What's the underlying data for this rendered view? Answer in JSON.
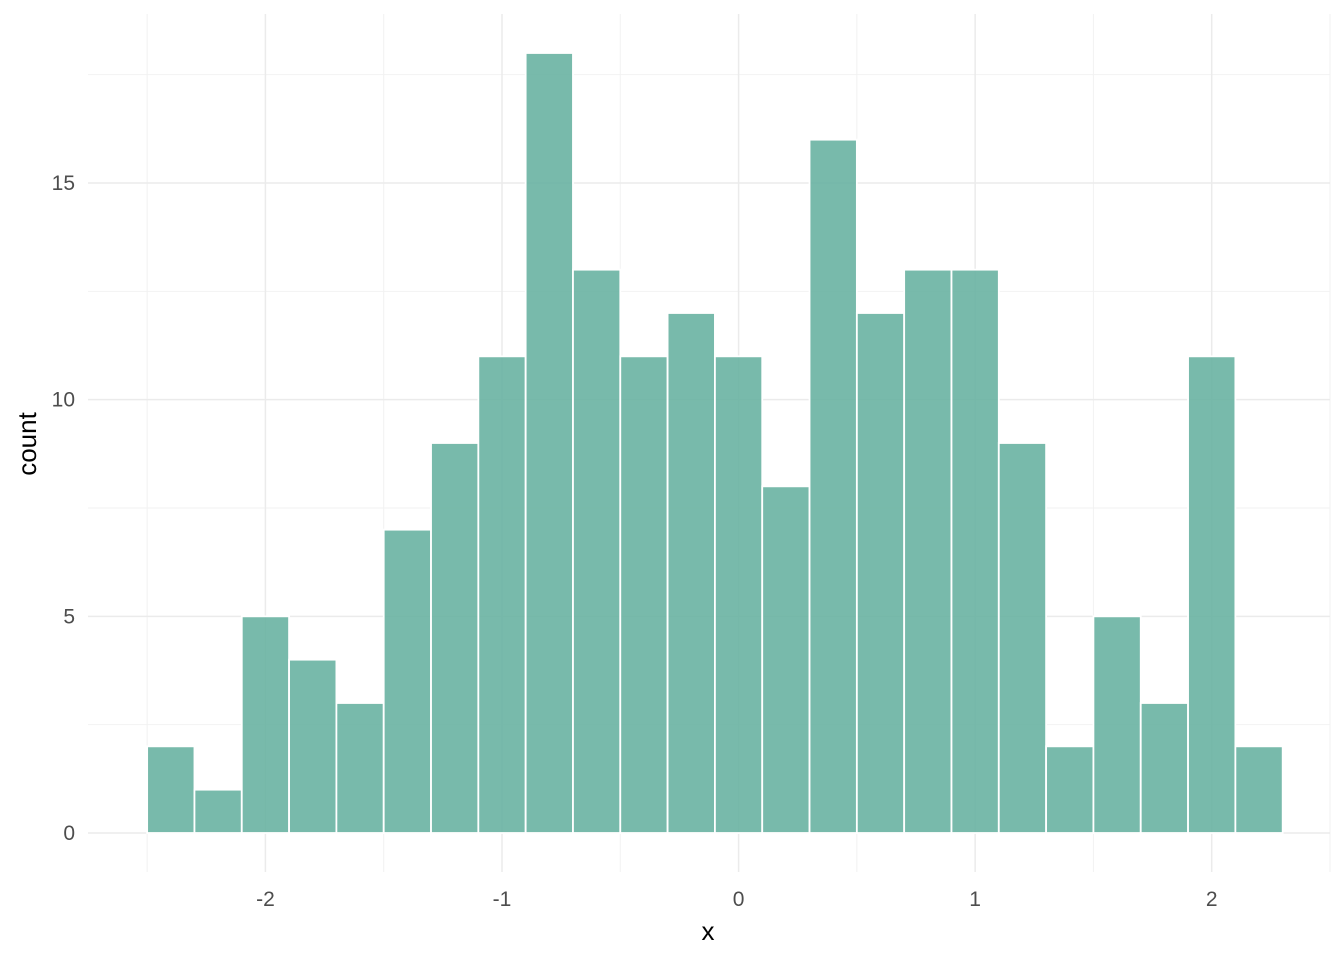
{
  "chart_data": {
    "type": "bar",
    "subtype": "histogram",
    "xlabel": "x",
    "ylabel": "count",
    "xlim": [
      -2.75,
      2.5
    ],
    "ylim": [
      -0.9,
      18.9
    ],
    "x_ticks": [
      -2,
      -1,
      0,
      1,
      2
    ],
    "y_ticks": [
      0,
      5,
      10,
      15
    ],
    "x_minor_ticks": [
      -2.5,
      -1.5,
      -0.5,
      0.5,
      1.5,
      2.5
    ],
    "y_minor_ticks": [
      2.5,
      7.5,
      12.5,
      17.5
    ],
    "bins": [
      {
        "x_start": -2.5,
        "x_end": -2.3,
        "count": 2
      },
      {
        "x_start": -2.3,
        "x_end": -2.1,
        "count": 1
      },
      {
        "x_start": -2.1,
        "x_end": -1.9,
        "count": 5
      },
      {
        "x_start": -1.9,
        "x_end": -1.7,
        "count": 4
      },
      {
        "x_start": -1.7,
        "x_end": -1.5,
        "count": 3
      },
      {
        "x_start": -1.5,
        "x_end": -1.3,
        "count": 7
      },
      {
        "x_start": -1.3,
        "x_end": -1.1,
        "count": 9
      },
      {
        "x_start": -1.1,
        "x_end": -0.9,
        "count": 11
      },
      {
        "x_start": -0.9,
        "x_end": -0.7,
        "count": 18
      },
      {
        "x_start": -0.7,
        "x_end": -0.5,
        "count": 13
      },
      {
        "x_start": -0.5,
        "x_end": -0.3,
        "count": 11
      },
      {
        "x_start": -0.3,
        "x_end": -0.1,
        "count": 12
      },
      {
        "x_start": -0.1,
        "x_end": 0.1,
        "count": 11
      },
      {
        "x_start": 0.1,
        "x_end": 0.3,
        "count": 8
      },
      {
        "x_start": 0.3,
        "x_end": 0.5,
        "count": 16
      },
      {
        "x_start": 0.5,
        "x_end": 0.7,
        "count": 12
      },
      {
        "x_start": 0.7,
        "x_end": 0.9,
        "count": 13
      },
      {
        "x_start": 0.9,
        "x_end": 1.1,
        "count": 13
      },
      {
        "x_start": 1.1,
        "x_end": 1.3,
        "count": 9
      },
      {
        "x_start": 1.3,
        "x_end": 1.5,
        "count": 2
      },
      {
        "x_start": 1.5,
        "x_end": 1.7,
        "count": 5
      },
      {
        "x_start": 1.7,
        "x_end": 1.9,
        "count": 3
      },
      {
        "x_start": 1.9,
        "x_end": 2.1,
        "count": 11
      },
      {
        "x_start": 2.1,
        "x_end": 2.3,
        "count": 2
      }
    ],
    "grid": true,
    "legend": "none",
    "colors": {
      "bar_fill": "#69b3a2",
      "bar_stroke": "#ffffff",
      "grid_major": "#ebebeb",
      "grid_minor": "#f2f2f2",
      "tick_text": "#4d4d4d",
      "title_text": "#000000"
    }
  }
}
